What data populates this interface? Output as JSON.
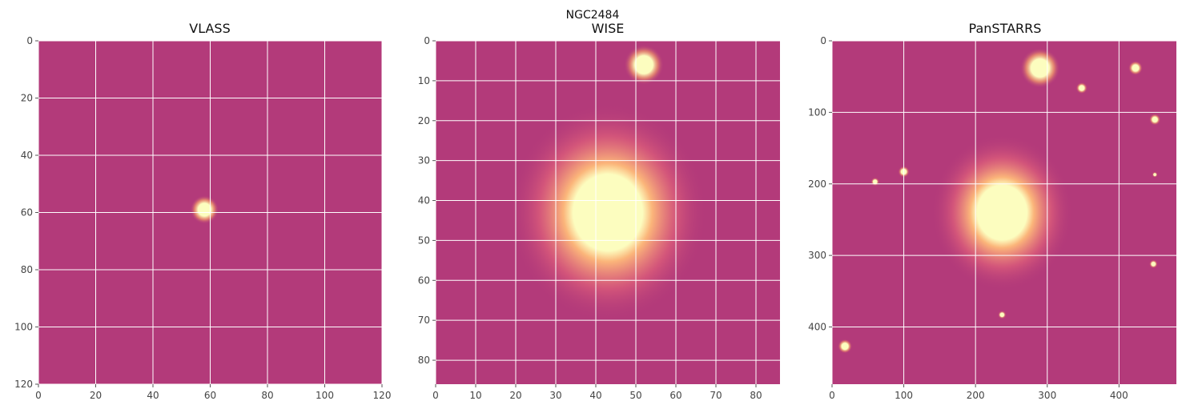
{
  "figure": {
    "suptitle": "NGC2484"
  },
  "panels": [
    {
      "title": "VLASS",
      "xlim": [
        0,
        120
      ],
      "ylim": [
        0,
        120
      ],
      "xticks": [
        0,
        20,
        40,
        60,
        80,
        100,
        120
      ],
      "yticks": [
        0,
        20,
        40,
        60,
        80,
        100,
        120
      ],
      "colormap": "magma-like (purple to pale yellow)",
      "sources": [
        {
          "x": 58,
          "y": 59,
          "brightness": 1.0,
          "extent": 2.5,
          "kind": "compact radio core"
        }
      ]
    },
    {
      "title": "WISE",
      "xlim": [
        0,
        86
      ],
      "ylim": [
        0,
        86
      ],
      "xticks": [
        0,
        10,
        20,
        30,
        40,
        50,
        60,
        70,
        80
      ],
      "yticks": [
        0,
        10,
        20,
        30,
        40,
        50,
        60,
        70,
        80
      ],
      "colormap": "magma-like (purple to pale yellow)",
      "sources": [
        {
          "x": 43,
          "y": 43,
          "brightness": 1.0,
          "extent": 10,
          "kind": "host galaxy"
        },
        {
          "x": 52,
          "y": 6,
          "brightness": 0.9,
          "extent": 2.5,
          "kind": "point source"
        }
      ]
    },
    {
      "title": "PanSTARRS",
      "xlim": [
        0,
        480
      ],
      "ylim": [
        0,
        480
      ],
      "xticks": [
        0,
        100,
        200,
        300,
        400
      ],
      "yticks": [
        0,
        100,
        200,
        300,
        400
      ],
      "colormap": "magma-like (purple to pale yellow)",
      "sources": [
        {
          "x": 237,
          "y": 240,
          "brightness": 1.0,
          "extent": 40,
          "kind": "host galaxy"
        },
        {
          "x": 290,
          "y": 38,
          "brightness": 1.0,
          "extent": 14,
          "kind": "bright star"
        },
        {
          "x": 423,
          "y": 38,
          "brightness": 0.9,
          "extent": 5,
          "kind": "star"
        },
        {
          "x": 348,
          "y": 66,
          "brightness": 0.8,
          "extent": 4,
          "kind": "star"
        },
        {
          "x": 450,
          "y": 110,
          "brightness": 0.8,
          "extent": 4,
          "kind": "star"
        },
        {
          "x": 100,
          "y": 183,
          "brightness": 0.8,
          "extent": 4,
          "kind": "star"
        },
        {
          "x": 60,
          "y": 197,
          "brightness": 0.6,
          "extent": 3,
          "kind": "star"
        },
        {
          "x": 448,
          "y": 312,
          "brightness": 0.7,
          "extent": 3,
          "kind": "star"
        },
        {
          "x": 18,
          "y": 427,
          "brightness": 0.9,
          "extent": 5,
          "kind": "star"
        },
        {
          "x": 237,
          "y": 383,
          "brightness": 0.5,
          "extent": 3,
          "kind": "star"
        },
        {
          "x": 450,
          "y": 187,
          "brightness": 0.5,
          "extent": 2,
          "kind": "star"
        }
      ]
    }
  ],
  "colors": {
    "background_pixel": "#b33a7a",
    "core_pixel": "#fcfdbf",
    "grid": "#ffffff",
    "tick_label": "#444444",
    "title": "#111111"
  }
}
